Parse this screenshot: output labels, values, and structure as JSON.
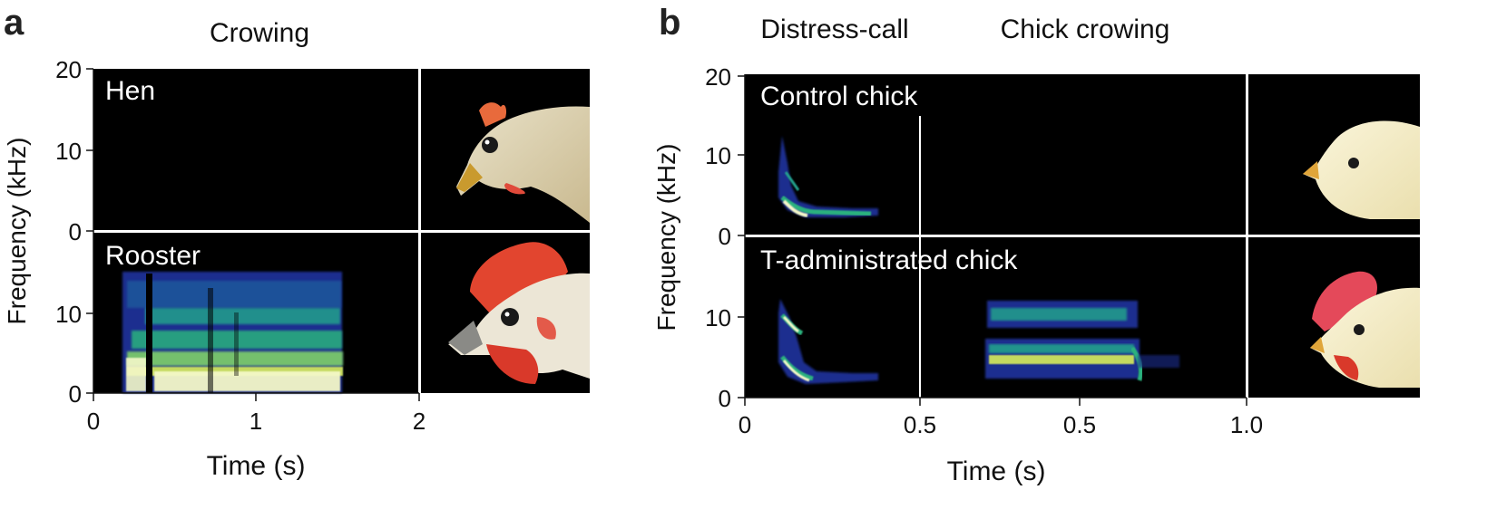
{
  "panel_a": {
    "letter": "a",
    "title": "Crowing",
    "ylabel": "Frequency (kHz)",
    "xlabel": "Time (s)",
    "rows": [
      {
        "label": "Hen",
        "y_ticks": [
          "20",
          "10",
          "0"
        ],
        "image": "hen-head-photo"
      },
      {
        "label": "Rooster",
        "y_ticks": [
          "10",
          "0"
        ],
        "image": "rooster-head-photo"
      }
    ],
    "x_ticks": [
      "0",
      "1",
      "2"
    ]
  },
  "panel_b": {
    "letter": "b",
    "section_titles": [
      "Distress-call",
      "Chick crowing"
    ],
    "ylabel": "Frequency (kHz)",
    "xlabel": "Time (s)",
    "rows": [
      {
        "label": "Control chick",
        "y_ticks": [
          "20",
          "10",
          "0"
        ],
        "image": "control-chick-head-photo"
      },
      {
        "label": "T-administrated chick",
        "y_ticks": [
          "10",
          "0"
        ],
        "image": "t-chick-head-photo"
      }
    ],
    "x_ticks": [
      "0",
      "0.5",
      "0.5",
      "1.0"
    ]
  },
  "colors": {
    "spectrogram_bg": "#000000",
    "energy_low": "#1b2e8f",
    "energy_mid": "#22a08c",
    "energy_high": "#d8ec5a",
    "energy_peak": "#ffffff"
  }
}
